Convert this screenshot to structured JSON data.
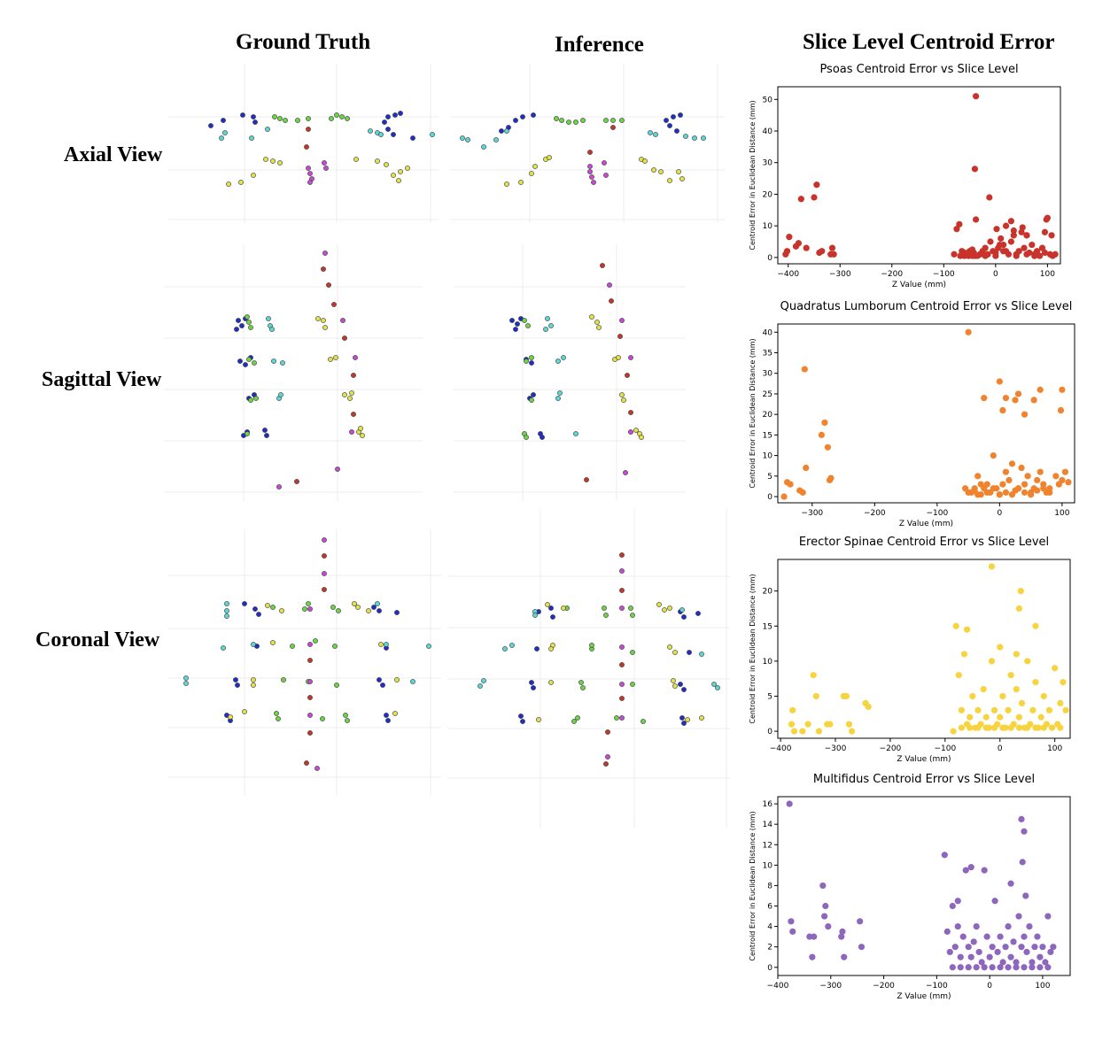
{
  "headers": {
    "ground_truth": "Ground Truth",
    "inference": "Inference",
    "slice_level": "Slice Level Centroid Error",
    "axial": "Axial View",
    "sagittal": "Sagittal View",
    "coronal": "Coronal View"
  },
  "colors": {
    "psoas": "#c8332b",
    "quadratus": "#f0832d",
    "erector": "#f7d33f",
    "multifidus": "#8d66bd",
    "blue": "#1f2fc4",
    "green": "#6fd34a",
    "cyan": "#5fd5d5",
    "yellow": "#e4e24a",
    "magenta": "#c74bd0",
    "red": "#c0392b"
  },
  "chart_data": [
    {
      "type": "scatter",
      "title": "Psoas Centroid Error vs Slice Level",
      "xlabel": "Z Value (mm)",
      "ylabel": "Centroid Error in Euclidean Distance (mm)",
      "xlim": [
        -420,
        125
      ],
      "ylim": [
        -2,
        54
      ],
      "xticks": [
        -400,
        -300,
        -200,
        -100,
        0,
        100
      ],
      "xtick_labels": [
        "−400",
        "−300",
        "−200",
        "−100",
        "0",
        "100"
      ],
      "yticks": [
        0,
        10,
        20,
        30,
        40,
        50
      ],
      "ytick_labels": [
        "0",
        "10",
        "20",
        "30",
        "40",
        "50"
      ],
      "color": "#c8332b",
      "x": [
        -405,
        -402,
        -398,
        -385,
        -380,
        -375,
        -365,
        -350,
        -345,
        -340,
        -335,
        -318,
        -315,
        -312,
        -80,
        -75,
        -70,
        -65,
        -60,
        -55,
        -50,
        -45,
        -42,
        -40,
        -38,
        -35,
        -30,
        -25,
        -20,
        -15,
        -10,
        -5,
        0,
        5,
        10,
        15,
        20,
        25,
        30,
        35,
        40,
        45,
        50,
        55,
        60,
        65,
        70,
        75,
        80,
        90,
        95,
        100,
        105,
        110,
        115,
        -38,
        -40,
        -12,
        -45,
        2,
        8,
        15,
        30,
        35,
        52,
        60,
        75,
        95,
        98,
        108,
        -68,
        -60,
        -52,
        -30,
        -20,
        0,
        20,
        40,
        60,
        85
      ],
      "y": [
        1,
        2,
        6.5,
        3.5,
        4.5,
        18.5,
        3,
        19,
        23,
        1.5,
        2,
        1,
        3,
        1,
        1,
        9,
        10.5,
        2,
        0.5,
        1,
        2,
        0.5,
        1.5,
        28,
        12,
        0.5,
        1,
        2,
        3,
        1,
        5,
        2,
        0.5,
        3,
        6,
        4,
        10,
        1,
        11.5,
        7,
        1,
        2,
        8,
        3,
        7,
        1.5,
        4,
        0.5,
        2,
        3,
        8,
        12.5,
        1,
        0.5,
        1,
        51,
        0.5,
        19,
        2.5,
        9,
        4,
        2,
        5,
        8.5,
        9.5,
        7,
        1,
        1.5,
        12,
        7,
        0.5,
        1.5,
        0.5,
        1,
        0.5,
        1.5,
        2,
        0.5,
        1,
        0.5
      ]
    },
    {
      "type": "scatter",
      "title": "Quadratus Lumborum Centroid Error vs Slice Level",
      "xlabel": "Z Value (mm)",
      "ylabel": "Centroid Error in Euclidean Distance (mm)",
      "xlim": [
        -355,
        120
      ],
      "ylim": [
        -1.5,
        42
      ],
      "xticks": [
        -300,
        -200,
        -100,
        0,
        100
      ],
      "xtick_labels": [
        "−300",
        "−200",
        "−100",
        "0",
        "100"
      ],
      "yticks": [
        0,
        5,
        10,
        15,
        20,
        25,
        30,
        35,
        40
      ],
      "ytick_labels": [
        "0",
        "5",
        "10",
        "15",
        "20",
        "25",
        "30",
        "35",
        "40"
      ],
      "color": "#f0832d",
      "x": [
        -345,
        -340,
        -335,
        -320,
        -315,
        -312,
        -310,
        -285,
        -280,
        -275,
        -270,
        -272,
        -55,
        -50,
        -45,
        -40,
        -35,
        -30,
        -25,
        -20,
        -15,
        -10,
        -5,
        0,
        5,
        10,
        15,
        20,
        25,
        30,
        35,
        40,
        45,
        50,
        55,
        60,
        65,
        70,
        75,
        80,
        90,
        95,
        100,
        105,
        110,
        -50,
        -40,
        -35,
        -30,
        -20,
        -10,
        0,
        10,
        20,
        30,
        40,
        50,
        60,
        70,
        80,
        -25,
        5,
        30,
        55,
        65,
        100,
        98,
        40,
        25,
        10,
        0
      ],
      "y": [
        0,
        3.5,
        3,
        1.5,
        1,
        31,
        7,
        15,
        18,
        12,
        4.5,
        4,
        2,
        40,
        1,
        1.5,
        5,
        0.5,
        2,
        3,
        1,
        10,
        2,
        0.5,
        3,
        6,
        4,
        8,
        1.5,
        2,
        7,
        3,
        5,
        1,
        2,
        4,
        6,
        3,
        1,
        2,
        5,
        3,
        4,
        6,
        3.5,
        1,
        2,
        0.5,
        3,
        1,
        2,
        0.5,
        1,
        0.5,
        2,
        1,
        0.5,
        1.5,
        2,
        1,
        24,
        21,
        25,
        23.5,
        26,
        26,
        21,
        20,
        23.5,
        24,
        28
      ]
    },
    {
      "type": "scatter",
      "title": "Erector Spinae Centroid Error vs Slice Level",
      "xlabel": "Z Value (mm)",
      "ylabel": "Centroid Error in Euclidean Distance (mm)",
      "xlim": [
        -405,
        128
      ],
      "ylim": [
        -1,
        24.5
      ],
      "xticks": [
        -400,
        -300,
        -200,
        -100,
        0,
        100
      ],
      "xtick_labels": [
        "−400",
        "−300",
        "−200",
        "−100",
        "0",
        "100"
      ],
      "yticks": [
        0,
        5,
        10,
        15,
        20
      ],
      "ytick_labels": [
        "0",
        "5",
        "10",
        "15",
        "20"
      ],
      "color": "#f7d33f",
      "x": [
        -380,
        -378,
        -375,
        -360,
        -350,
        -340,
        -335,
        -330,
        -315,
        -310,
        -285,
        -280,
        -275,
        -270,
        -245,
        -240,
        -85,
        -80,
        -75,
        -70,
        -65,
        -60,
        -55,
        -50,
        -45,
        -40,
        -35,
        -30,
        -25,
        -20,
        -15,
        -10,
        -5,
        0,
        5,
        10,
        15,
        20,
        25,
        30,
        35,
        40,
        45,
        50,
        55,
        60,
        65,
        70,
        75,
        80,
        85,
        90,
        95,
        100,
        105,
        110,
        115,
        120,
        -70,
        -55,
        -40,
        -25,
        -10,
        5,
        20,
        35,
        50,
        65,
        80,
        95,
        110,
        -15,
        35,
        38,
        65,
        -60,
        0,
        30
      ],
      "y": [
        1,
        3,
        0,
        0,
        1,
        8,
        5,
        0,
        1,
        1,
        5,
        5,
        1,
        0,
        4,
        3.5,
        0,
        15,
        8,
        3,
        11,
        1,
        2,
        5,
        0.5,
        3,
        1,
        6,
        2,
        0.5,
        10,
        3,
        1,
        2,
        5,
        0.5,
        3,
        8,
        1,
        6,
        2,
        4,
        0.5,
        10,
        1,
        3,
        7,
        0.5,
        2,
        5,
        1,
        3,
        0.5,
        9,
        1,
        4,
        7,
        3,
        0.5,
        0.5,
        0.5,
        0.5,
        0.5,
        0.5,
        0.5,
        0.5,
        0.5,
        0.5,
        0.5,
        0.5,
        0.5,
        23.5,
        17.5,
        20,
        15,
        14.5,
        12,
        11
      ]
    },
    {
      "type": "scatter",
      "title": "Multifidus Centroid Error vs Slice Level",
      "xlabel": "Z Value (mm)",
      "ylabel": "Centroid Error in Euclidean Distance (mm)",
      "xlim": [
        -400,
        152
      ],
      "ylim": [
        -0.8,
        16.7
      ],
      "xticks": [
        -400,
        -300,
        -200,
        -100,
        0,
        100
      ],
      "xtick_labels": [
        "−400",
        "−300",
        "−200",
        "−100",
        "0",
        "100"
      ],
      "yticks": [
        0,
        2,
        4,
        6,
        8,
        10,
        12,
        14,
        16
      ],
      "ytick_labels": [
        "0",
        "2",
        "4",
        "6",
        "8",
        "10",
        "12",
        "14",
        "16"
      ],
      "color": "#8d66bd",
      "x": [
        -378,
        -375,
        -372,
        -340,
        -335,
        -332,
        -315,
        -312,
        -310,
        -305,
        -280,
        -278,
        -275,
        -245,
        -242,
        -85,
        -80,
        -75,
        -70,
        -65,
        -60,
        -55,
        -50,
        -45,
        -40,
        -35,
        -30,
        -25,
        -20,
        -15,
        -10,
        -5,
        0,
        5,
        10,
        15,
        20,
        25,
        30,
        35,
        40,
        45,
        50,
        55,
        60,
        65,
        70,
        75,
        80,
        85,
        90,
        95,
        100,
        105,
        110,
        115,
        120,
        -70,
        -55,
        -40,
        -25,
        -10,
        5,
        20,
        35,
        50,
        65,
        80,
        95,
        110,
        60,
        65,
        62,
        68,
        -35,
        40,
        -60
      ],
      "y": [
        16,
        4.5,
        3.5,
        3,
        1,
        3,
        8,
        5,
        6,
        4,
        3,
        3.5,
        1,
        4.5,
        2,
        11,
        3.5,
        1.5,
        6,
        2,
        4,
        1,
        3,
        9.5,
        2,
        1,
        2.5,
        4,
        1.5,
        0.5,
        9.5,
        3,
        1,
        2,
        6.5,
        1.5,
        3,
        0.5,
        2,
        4,
        1,
        2.5,
        0.5,
        5,
        2,
        3,
        1.5,
        4,
        0.5,
        2,
        3,
        1,
        2,
        0.5,
        5,
        1.5,
        2,
        0,
        0,
        0,
        0,
        0,
        0,
        0,
        0,
        0,
        0,
        0,
        0,
        0,
        14.5,
        13.3,
        10.3,
        7,
        9.8,
        8.2,
        6.5
      ]
    }
  ]
}
